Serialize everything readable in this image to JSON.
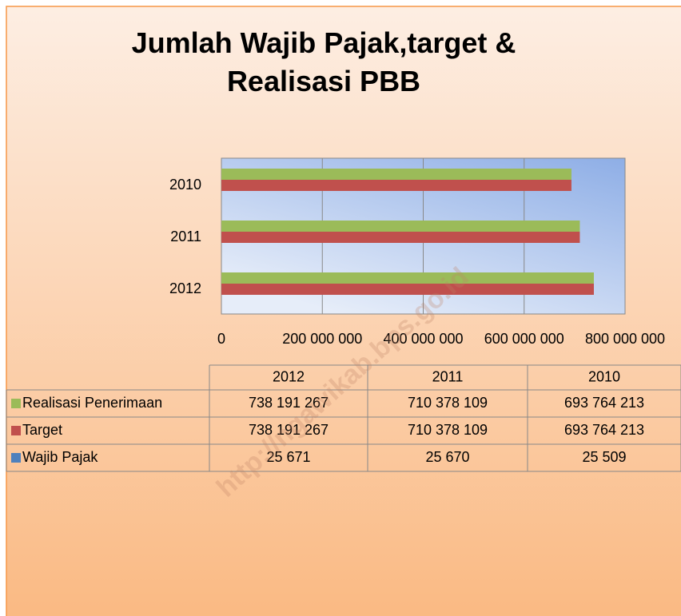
{
  "chart_data": {
    "type": "bar",
    "orientation": "horizontal",
    "title": "Jumlah Wajib Pajak,target & Realisasi PBB",
    "categories": [
      "2012",
      "2011",
      "2010"
    ],
    "series": [
      {
        "name": "Realisasi Penerimaan",
        "color": "#9bbb59",
        "values": [
          738191267,
          710378109,
          693764213
        ],
        "value_labels": [
          "738 191 267",
          "710 378 109",
          "693 764 213"
        ]
      },
      {
        "name": "Target",
        "color": "#c0504d",
        "values": [
          738191267,
          710378109,
          693764213
        ],
        "value_labels": [
          "738 191 267",
          "710 378 109",
          "693 764 213"
        ]
      },
      {
        "name": "Wajib Pajak",
        "color": "#4f81bd",
        "values": [
          25671,
          25670,
          25509
        ],
        "value_labels": [
          "25 671",
          "25 670",
          "25 509"
        ]
      }
    ],
    "xlim": [
      0,
      800000000
    ],
    "xticks": [
      0,
      {
        "value": 200000000,
        "label": "200 000 000"
      },
      {
        "value": 400000000,
        "label": "400 000 000"
      },
      {
        "value": 600000000,
        "label": "600 000 000"
      },
      {
        "value": 800000000,
        "label": "800 000 000"
      }
    ],
    "grid": true,
    "data_table": true,
    "watermark": "http://ngawikab.bps.go.id"
  }
}
